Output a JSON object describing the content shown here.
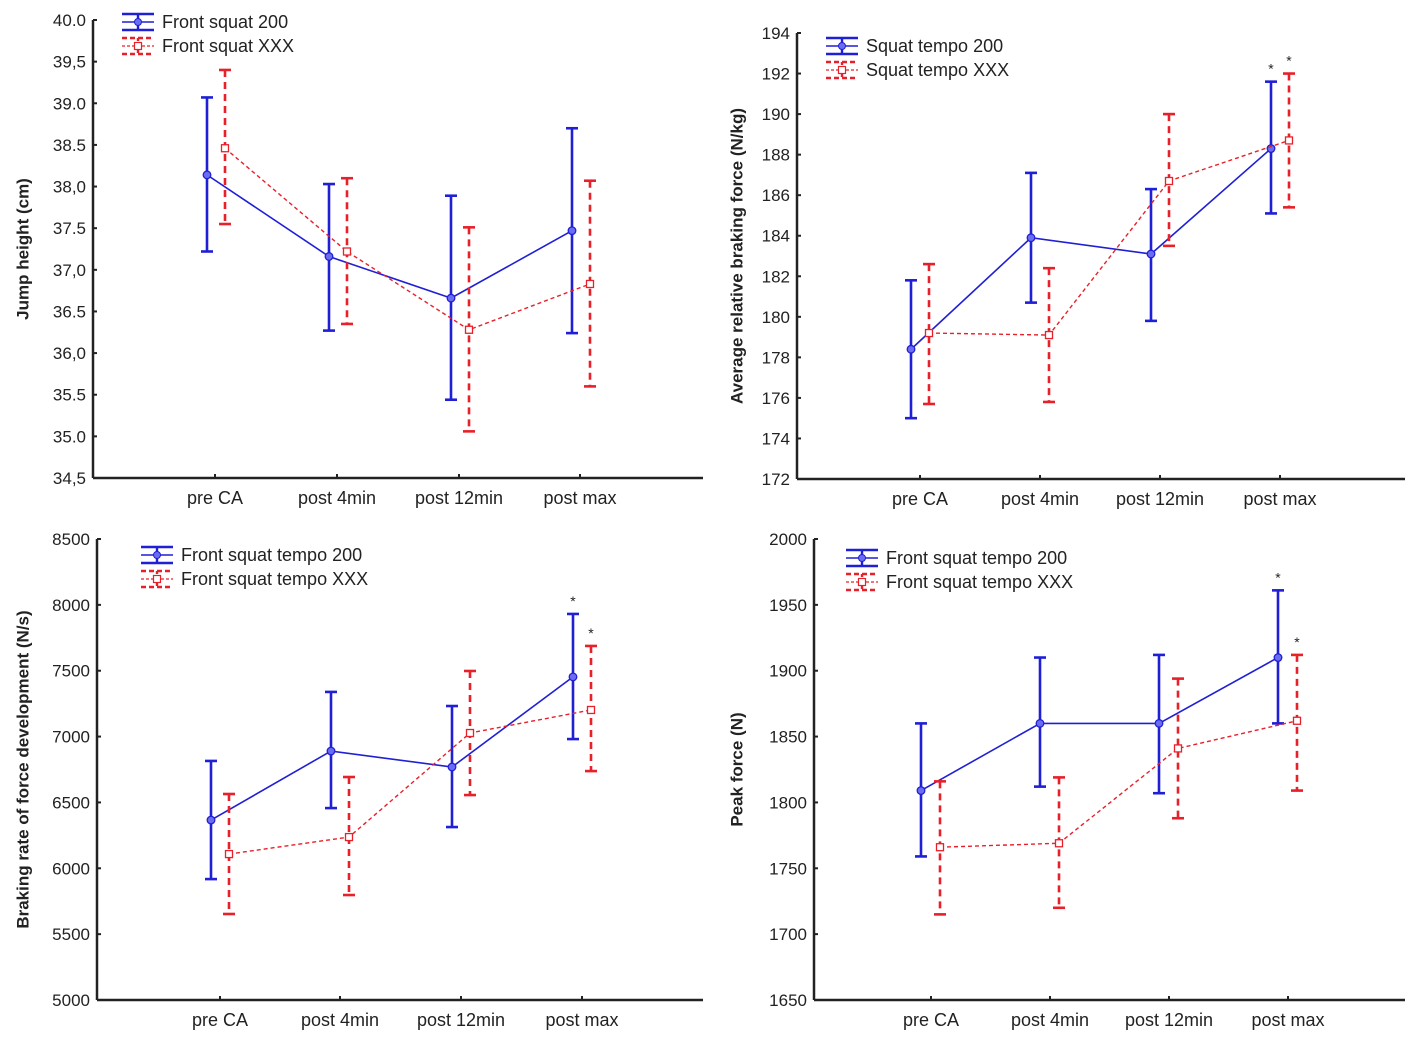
{
  "chart_data": [
    {
      "type": "line",
      "ylabel": "Jump height (cm)",
      "xlabel": "",
      "categories": [
        "pre CA",
        "post 4min",
        "post 12min",
        "post max"
      ],
      "ylim": [
        34.5,
        40.0
      ],
      "yticks": [
        34.5,
        35.0,
        35.5,
        36.0,
        36.5,
        37.0,
        37.5,
        38.0,
        38.5,
        39.0,
        39.5,
        40.0
      ],
      "ytick_labels": [
        "34,5",
        "35.0",
        "35.5",
        "36,0",
        "36.5",
        "37,0",
        "37.5",
        "38,0",
        "38.5",
        "39.0",
        "39,5",
        "40.0"
      ],
      "legend": "top-left",
      "series": [
        {
          "name": "Front squat 200",
          "color": "#1f1fd6",
          "style": "solid",
          "values": [
            38.14,
            37.16,
            36.66,
            37.47
          ],
          "upper": [
            39.07,
            38.03,
            37.89,
            38.7
          ],
          "lower": [
            37.22,
            36.27,
            35.44,
            36.24
          ],
          "significant": [
            false,
            false,
            false,
            false
          ]
        },
        {
          "name": "Front squat XXX",
          "color": "#e8202a",
          "style": "dashed",
          "values": [
            38.46,
            37.22,
            36.28,
            36.83
          ],
          "upper": [
            39.4,
            38.1,
            37.51,
            38.07
          ],
          "lower": [
            37.55,
            36.35,
            35.06,
            35.6
          ],
          "significant": [
            false,
            false,
            false,
            false
          ]
        }
      ]
    },
    {
      "type": "line",
      "ylabel": "Average relative braking force (N/kg)",
      "xlabel": "",
      "categories": [
        "pre CA",
        "post 4min",
        "post 12min",
        "post max"
      ],
      "ylim": [
        172,
        194
      ],
      "yticks": [
        172,
        174,
        176,
        178,
        180,
        182,
        184,
        186,
        188,
        190,
        192,
        194
      ],
      "ytick_labels": [
        "172",
        "174",
        "176",
        "178",
        "180",
        "182",
        "184",
        "186",
        "188",
        "190",
        "192",
        "194"
      ],
      "legend": "top-left",
      "series": [
        {
          "name": "Squat tempo 200",
          "color": "#1f1fd6",
          "style": "solid",
          "values": [
            178.4,
            183.9,
            183.1,
            188.3
          ],
          "upper": [
            181.8,
            187.1,
            186.3,
            191.6
          ],
          "lower": [
            175.0,
            180.7,
            179.8,
            185.1
          ],
          "significant": [
            false,
            false,
            false,
            true
          ]
        },
        {
          "name": "Squat tempo XXX",
          "color": "#e8202a",
          "style": "dashed",
          "values": [
            179.2,
            179.1,
            186.7,
            188.7
          ],
          "upper": [
            182.6,
            182.4,
            190.0,
            192.0
          ],
          "lower": [
            175.7,
            175.8,
            183.5,
            185.4
          ],
          "significant": [
            false,
            false,
            false,
            true
          ]
        }
      ]
    },
    {
      "type": "line",
      "ylabel": "Braking rate of force development (N/s)",
      "xlabel": "",
      "categories": [
        "pre CA",
        "post 4min",
        "post 12min",
        "post max"
      ],
      "ylim": [
        5000,
        8500
      ],
      "yticks": [
        5000,
        5500,
        6000,
        6500,
        7000,
        7500,
        8000,
        8500
      ],
      "ytick_labels": [
        "5000",
        "5500",
        "6000",
        "6500",
        "7000",
        "7500",
        "8000",
        "8500"
      ],
      "legend": "top-left",
      "series": [
        {
          "name": "Front squat tempo 200",
          "color": "#1f1fd6",
          "style": "solid",
          "values": [
            6366,
            6890,
            6769,
            7453
          ],
          "upper": [
            6815,
            7339,
            7232,
            7931
          ],
          "lower": [
            5918,
            6457,
            6313,
            6981
          ],
          "significant": [
            false,
            false,
            false,
            true
          ]
        },
        {
          "name": "Front squat tempo XXX",
          "color": "#e8202a",
          "style": "dashed",
          "values": [
            6108,
            6237,
            7027,
            7202
          ],
          "upper": [
            6564,
            6693,
            7498,
            7688
          ],
          "lower": [
            5653,
            5797,
            6556,
            6738
          ],
          "significant": [
            false,
            false,
            false,
            true
          ]
        }
      ]
    },
    {
      "type": "line",
      "ylabel": "Peak force (N)",
      "xlabel": "",
      "categories": [
        "pre CA",
        "post 4min",
        "post 12min",
        "post max"
      ],
      "ylim": [
        1650,
        2000
      ],
      "yticks": [
        1650,
        1700,
        1750,
        1800,
        1850,
        1900,
        1950,
        2000
      ],
      "ytick_labels": [
        "1650",
        "1700",
        "1750",
        "1800",
        "1850",
        "1900",
        "1950",
        "2000"
      ],
      "legend": "top-left",
      "series": [
        {
          "name": "Front squat tempo 200",
          "color": "#1f1fd6",
          "style": "solid",
          "values": [
            1809,
            1860,
            1860,
            1910
          ],
          "upper": [
            1860,
            1910,
            1912,
            1961
          ],
          "lower": [
            1759,
            1812,
            1807,
            1860
          ],
          "significant": [
            false,
            false,
            false,
            true
          ]
        },
        {
          "name": "Front squat tempo XXX",
          "color": "#e8202a",
          "style": "dashed",
          "values": [
            1766,
            1769,
            1841,
            1862
          ],
          "upper": [
            1816,
            1819,
            1894,
            1912
          ],
          "lower": [
            1715,
            1720,
            1788,
            1809
          ],
          "significant": [
            false,
            false,
            false,
            true
          ]
        }
      ]
    }
  ],
  "significance_marker": "*"
}
